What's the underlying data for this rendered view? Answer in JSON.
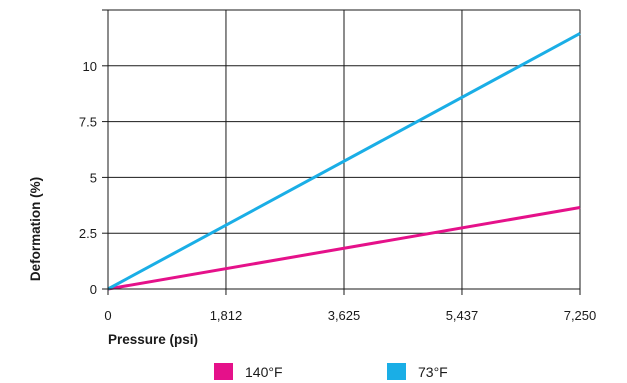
{
  "chart_data": {
    "type": "line",
    "title": "",
    "xlabel": "Pressure (psi)",
    "ylabel": "Deformation (%)",
    "xlim": [
      0,
      7250
    ],
    "ylim": [
      0,
      12.5
    ],
    "x_ticks": [
      0,
      1812,
      3625,
      5437,
      7250
    ],
    "x_tick_labels": [
      "0",
      "1,812",
      "3,625",
      "5,437",
      "7,250"
    ],
    "y_ticks": [
      0,
      2.5,
      5,
      7.5,
      10
    ],
    "y_tick_labels": [
      "0",
      "2.5",
      "5",
      "7.5",
      "10"
    ],
    "grid": true,
    "legend_position": "bottom",
    "series": [
      {
        "name": "140°F",
        "color": "#e5118a",
        "x": [
          0,
          7250
        ],
        "y": [
          0,
          3.65
        ]
      },
      {
        "name": "73°F",
        "color": "#1aaee6",
        "x": [
          0,
          7250
        ],
        "y": [
          0,
          11.45
        ]
      }
    ]
  }
}
